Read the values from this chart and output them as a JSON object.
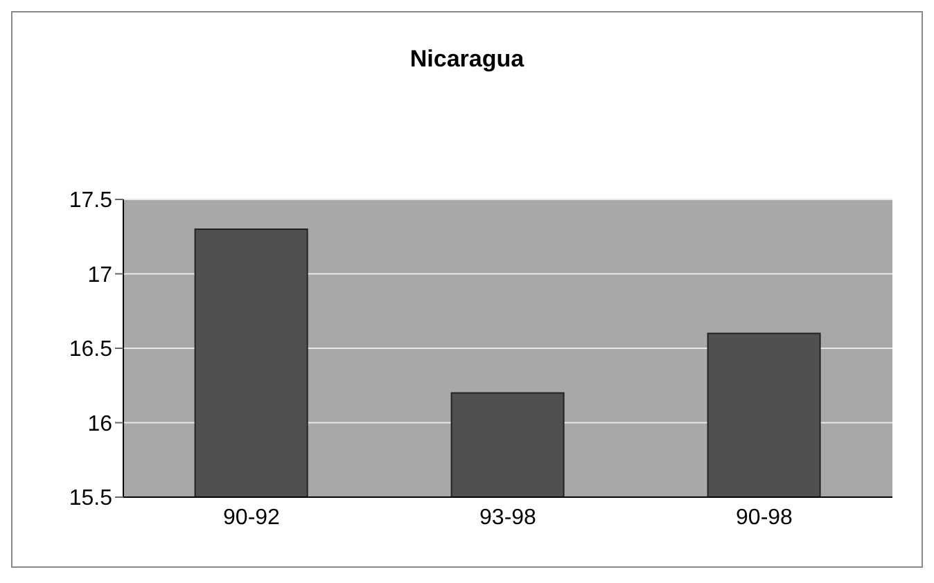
{
  "chart_data": {
    "type": "bar",
    "title": "Nicaragua",
    "categories": [
      "90-92",
      "93-98",
      "90-98"
    ],
    "values": [
      17.3,
      16.2,
      16.6
    ],
    "color": "#505050",
    "ylim": [
      15.5,
      17.5
    ],
    "yticks": [
      15.5,
      16,
      16.5,
      17,
      17.5
    ],
    "grid": "y"
  }
}
